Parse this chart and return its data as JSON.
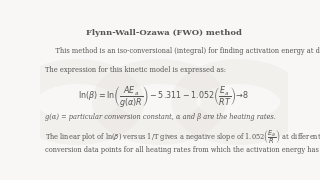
{
  "bg_color": "#f8f7f5",
  "title": "Flynn-Wall-Ozawa (FWO) method",
  "title_fontsize": 6.0,
  "body_fontsize": 4.8,
  "eq_fontsize": 5.8,
  "small_eq_fontsize": 4.8,
  "text_color": "#555555",
  "watermark_color": "#d8d4ce",
  "line1": "    This method is an iso-conversional (integral) for finding activation energy at different heating rates.",
  "line2": "The expression for this kinetic model is expressed as:",
  "line3": "g(α) = particular conversion constant, α and β are the heating rates.",
  "line4": "The linear plot of ln(β) versus 1/T gives a negative slope of 1.052",
  "line4_eq": "\\left(\\frac{E_a}{RT}\\right)",
  "line4c": " at different temperature and",
  "line5": "conversion data points for all heating rates from which the activation energy has been calculated.",
  "equation": "ln(\\beta) = \\ln\\!\\left(\\frac{AE_a}{g(\\alpha)R}\\right) - 5.311 - 1.052\\left(\\frac{E_a}{RT}\\right)\\!\\to\\!8"
}
